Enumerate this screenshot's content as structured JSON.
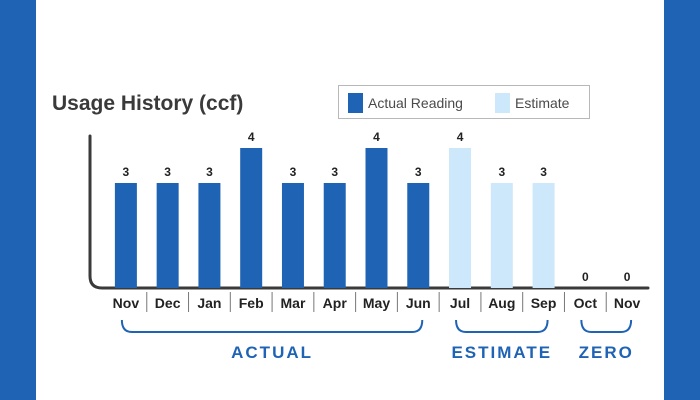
{
  "colors": {
    "frame": "#1f63b5",
    "actual": "#1f63b5",
    "estimate": "#cde8fb",
    "axis": "#3a3a3a",
    "text": "#222222"
  },
  "chart_data": {
    "type": "bar",
    "title": "Usage History (ccf)",
    "categories": [
      "Nov",
      "Dec",
      "Jan",
      "Feb",
      "Mar",
      "Apr",
      "May",
      "Jun",
      "Jul",
      "Aug",
      "Sep",
      "Oct",
      "Nov"
    ],
    "values": [
      3,
      3,
      3,
      4,
      3,
      3,
      4,
      3,
      4,
      3,
      3,
      0,
      0
    ],
    "value_labels": [
      "3",
      "3",
      "3",
      "4",
      "3",
      "3",
      "4",
      "3",
      "4",
      "3",
      "3",
      "0",
      "0"
    ],
    "kinds": [
      "actual",
      "actual",
      "actual",
      "actual",
      "actual",
      "actual",
      "actual",
      "actual",
      "estimate",
      "estimate",
      "estimate",
      "zero",
      "zero"
    ],
    "ylim": [
      0,
      4
    ],
    "grid": false,
    "legend": {
      "placement": "top-right",
      "entries": [
        {
          "label": "Actual Reading",
          "color": "#1f63b5"
        },
        {
          "label": "Estimate",
          "color": "#cde8fb"
        }
      ]
    },
    "groups": [
      {
        "label": "ACTUAL",
        "from": 0,
        "to": 7
      },
      {
        "label": "ESTIMATE",
        "from": 8,
        "to": 10
      },
      {
        "label": "ZERO",
        "from": 11,
        "to": 12
      }
    ]
  }
}
